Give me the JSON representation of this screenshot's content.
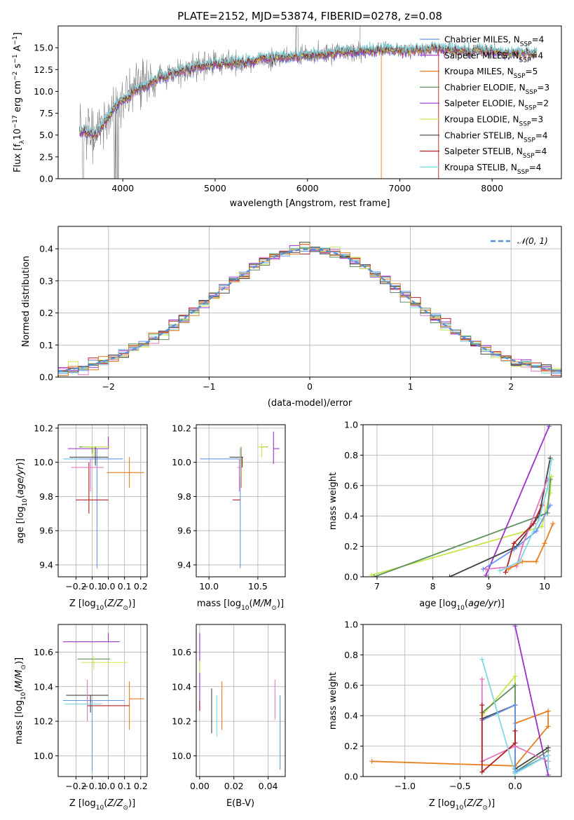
{
  "chart_data": [
    {
      "id": "spectrum",
      "type": "line",
      "title": "PLATE=2152, MJD=53874, FIBERID=0278, z=0.08",
      "xlabel": "wavelength [Angstrom, rest frame]",
      "ylabel": "Flux [f_λ10^-17 erg cm^-2 s^-1 A^-1]",
      "xlim": [
        3300,
        8750
      ],
      "ylim": [
        0,
        17.5
      ],
      "xticks": [
        4000,
        5000,
        6000,
        7000,
        8000
      ],
      "yticks": [
        0.0,
        2.5,
        5.0,
        7.5,
        10.0,
        12.5,
        15.0
      ],
      "data_color": "#808080",
      "model_colors": [
        "#6495ed",
        "#9932cc",
        "#e87d1e",
        "#5f8f5f",
        "#9932cc",
        "#c5e84a",
        "#444444",
        "#b22222",
        "#7fd8e0"
      ],
      "continuum": {
        "x": [
          3500,
          3700,
          3900,
          4100,
          4400,
          4700,
          5000,
          5300,
          5600,
          5900,
          6200,
          6500,
          6800,
          7100,
          7400,
          7700,
          8000,
          8400
        ],
        "y": [
          5.6,
          5.0,
          8.0,
          9.9,
          11.6,
          12.6,
          13.2,
          13.3,
          13.8,
          14.1,
          14.3,
          14.6,
          14.8,
          14.7,
          14.9,
          14.8,
          14.6,
          14.4
        ]
      },
      "legend": [
        {
          "label": "Chabrier MILES, N",
          "sub": "SSP",
          "tail": "=4",
          "color": "#6495ed"
        },
        {
          "label": "Salpeter MILES, N",
          "sub": "SSP",
          "tail": "=4",
          "color": "#9932cc"
        },
        {
          "label": "Kroupa MILES, N",
          "sub": "SSP",
          "tail": "=5",
          "color": "#e87d1e"
        },
        {
          "label": "Chabrier ELODIE, N",
          "sub": "SSP",
          "tail": "=3",
          "color": "#5f8f5f"
        },
        {
          "label": "Salpeter ELODIE, N",
          "sub": "SSP",
          "tail": "=2",
          "color": "#9932cc"
        },
        {
          "label": "Kroupa ELODIE, N",
          "sub": "SSP",
          "tail": "=3",
          "color": "#c5e84a"
        },
        {
          "label": "Chabrier STELIB, N",
          "sub": "SSP",
          "tail": "=4",
          "color": "#444444"
        },
        {
          "label": "Salpeter STELIB, N",
          "sub": "SSP",
          "tail": "=4",
          "color": "#b22222"
        },
        {
          "label": "Kroupa STELIB, N",
          "sub": "SSP",
          "tail": "=4",
          "color": "#7fd8e0"
        }
      ]
    },
    {
      "id": "residuals",
      "type": "histogram",
      "xlabel": "(data-model)/error",
      "ylabel": "Normed distribution",
      "xlim": [
        -2.5,
        2.5
      ],
      "ylim": [
        0,
        0.47
      ],
      "xticks": [
        -2,
        -1,
        0,
        1,
        2
      ],
      "yticks": [
        0.0,
        0.1,
        0.2,
        0.3,
        0.4
      ],
      "legend": "𝒩(0, 1)",
      "colors": [
        "#6495ed",
        "#e377c2",
        "#9932cc",
        "#c5e84a",
        "#b22222",
        "#5f8f5f",
        "#7fd8e0",
        "#444444",
        "#e87d1e"
      ]
    },
    {
      "id": "age_vs_Z",
      "type": "errorbar",
      "xlabel": "Z [log10(Z/Z☉)]",
      "ylabel": "age [log10(age/yr)]",
      "xlim": [
        -0.31,
        0.24
      ],
      "ylim": [
        9.33,
        10.22
      ],
      "xticks": [
        -0.2,
        -0.1,
        0.0,
        0.1,
        0.2
      ],
      "yticks": [
        9.4,
        9.6,
        9.8,
        10.0,
        10.2
      ],
      "points": [
        {
          "x": -0.07,
          "xerr": [
            0.2,
            0.16
          ],
          "y": 10.02,
          "yerr": [
            0.64,
            0.06
          ],
          "color": "#6495ed"
        },
        {
          "x": 0.0,
          "xerr": [
            0.25,
            0.0
          ],
          "y": 10.08,
          "yerr": [
            0.0,
            0.07
          ],
          "color": "#9932cc"
        },
        {
          "x": 0.13,
          "xerr": [
            0.14,
            0.09
          ],
          "y": 9.94,
          "yerr": [
            0.09,
            0.09
          ],
          "color": "#e87d1e"
        },
        {
          "x": -0.1,
          "xerr": [
            0.08,
            0.0
          ],
          "y": 10.09,
          "yerr": [
            0.04,
            0.0
          ],
          "color": "#5f8f5f"
        },
        {
          "x": -0.09,
          "xerr": [
            0.07,
            0.1
          ],
          "y": 10.09,
          "yerr": [
            0.06,
            0.0
          ],
          "color": "#c5e84a"
        },
        {
          "x": -0.08,
          "xerr": [
            0.16,
            0.08
          ],
          "y": 10.03,
          "yerr": [
            0.05,
            0.06
          ],
          "color": "#444444"
        },
        {
          "x": -0.12,
          "xerr": [
            0.08,
            0.12
          ],
          "y": 9.78,
          "yerr": [
            0.08,
            0.22
          ],
          "color": "#b22222"
        },
        {
          "x": -0.11,
          "xerr": [
            0.12,
            0.08
          ],
          "y": 9.97,
          "yerr": [
            0.14,
            0.05
          ],
          "color": "#e377c2"
        },
        {
          "x": -0.18,
          "xerr": [
            0.1,
            0.0
          ],
          "y": 10.02,
          "yerr": [
            0.0,
            0.0
          ],
          "color": "#7fd8e0"
        }
      ]
    },
    {
      "id": "age_vs_mass",
      "type": "errorbar",
      "xlabel": "mass [log10(M/M☉)]",
      "xlim": [
        9.87,
        10.78
      ],
      "ylim": [
        9.33,
        10.22
      ],
      "xticks": [
        10.0,
        10.5
      ],
      "yticks": [
        9.4,
        9.6,
        9.8,
        10.0,
        10.2
      ],
      "points": [
        {
          "x": 10.32,
          "xerr": [
            0.41,
            0.0
          ],
          "y": 10.02,
          "yerr": [
            0.64,
            0.06
          ],
          "color": "#6495ed"
        },
        {
          "x": 10.66,
          "xerr": [
            0.0,
            0.06
          ],
          "y": 10.08,
          "yerr": [
            0.09,
            0.1
          ],
          "color": "#9932cc"
        },
        {
          "x": 10.33,
          "xerr": [
            0.0,
            0.0
          ],
          "y": 9.94,
          "yerr": [
            0.09,
            0.15
          ],
          "color": "#e87d1e"
        },
        {
          "x": 10.56,
          "xerr": [
            0.04,
            0.04
          ],
          "y": 10.09,
          "yerr": [
            0.0,
            0.0
          ],
          "color": "#5f8f5f"
        },
        {
          "x": 10.54,
          "xerr": [
            0.04,
            0.05
          ],
          "y": 10.09,
          "yerr": [
            0.06,
            0.02
          ],
          "color": "#c5e84a"
        },
        {
          "x": 10.34,
          "xerr": [
            0.13,
            0.01
          ],
          "y": 10.03,
          "yerr": [
            0.06,
            0.0
          ],
          "color": "#444444"
        },
        {
          "x": 10.29,
          "xerr": [
            0.05,
            0.03
          ],
          "y": 9.78,
          "yerr": [
            0.0,
            0.0
          ],
          "color": "#b22222"
        },
        {
          "x": 10.31,
          "xerr": [
            0.02,
            0.03
          ],
          "y": 9.97,
          "yerr": [
            0.14,
            0.05
          ],
          "color": "#e377c2"
        },
        {
          "x": 10.32,
          "xerr": [
            0.0,
            0.0
          ],
          "y": 10.02,
          "yerr": [
            0.11,
            0.07
          ],
          "color": "#7fd8e0"
        }
      ]
    },
    {
      "id": "mass_weight_vs_age",
      "type": "line",
      "xlabel": "age [log10(age/yr)]",
      "ylabel": "mass weight",
      "xlim": [
        6.75,
        10.3
      ],
      "ylim": [
        0,
        1
      ],
      "xticks": [
        7,
        8,
        9,
        10
      ],
      "yticks": [
        0.0,
        0.2,
        0.4,
        0.6,
        0.8,
        1.0
      ],
      "series": [
        {
          "color": "#c5e84a",
          "x": [
            6.9,
            9.95,
            10.1,
            10.12
          ],
          "y": [
            0.01,
            0.33,
            0.55,
            0.66
          ]
        },
        {
          "color": "#5f8f5f",
          "x": [
            6.95,
            10.05,
            10.1
          ],
          "y": [
            0.0,
            0.42,
            0.64
          ]
        },
        {
          "color": "#9932cc",
          "x": [
            8.95,
            10.08
          ],
          "y": [
            0.01,
            0.99
          ]
        },
        {
          "color": "#444444",
          "x": [
            8.3,
            9.5,
            9.9,
            10.1
          ],
          "y": [
            0.0,
            0.2,
            0.4,
            0.78
          ]
        },
        {
          "color": "#6495ed",
          "x": [
            8.9,
            9.45,
            9.85,
            10.1
          ],
          "y": [
            0.05,
            0.18,
            0.3,
            0.47
          ]
        },
        {
          "color": "#e377c2",
          "x": [
            8.95,
            9.5,
            9.6,
            10.05
          ],
          "y": [
            0.05,
            0.07,
            0.2,
            0.64
          ]
        },
        {
          "color": "#b22222",
          "x": [
            9.3,
            9.45,
            9.8,
            9.95
          ],
          "y": [
            0.03,
            0.22,
            0.35,
            0.47
          ]
        },
        {
          "color": "#e87d1e",
          "x": [
            9.35,
            9.6,
            9.85,
            10.0,
            10.15
          ],
          "y": [
            0.05,
            0.1,
            0.1,
            0.22,
            0.35
          ]
        },
        {
          "color": "#7fd8e0",
          "x": [
            9.2,
            9.55,
            9.9,
            10.05,
            10.12
          ],
          "y": [
            0.04,
            0.1,
            0.38,
            0.58,
            0.77
          ]
        }
      ]
    },
    {
      "id": "mass_vs_Z",
      "type": "errorbar",
      "xlabel": "Z [log10(Z/Z☉)]",
      "ylabel": "mass [log10(M/M☉)]",
      "xlim": [
        -0.31,
        0.24
      ],
      "ylim": [
        9.88,
        10.76
      ],
      "xticks": [
        -0.2,
        -0.1,
        0.0,
        0.1,
        0.2
      ],
      "yticks": [
        10.0,
        10.2,
        10.4,
        10.6
      ],
      "points": [
        {
          "x": -0.1,
          "xerr": [
            0.18,
            0.2
          ],
          "y": 10.32,
          "yerr": [
            0.41,
            0.0
          ],
          "color": "#6495ed"
        },
        {
          "x": 0.0,
          "xerr": [
            0.28,
            0.07
          ],
          "y": 10.66,
          "yerr": [
            0.0,
            0.05
          ],
          "color": "#9932cc"
        },
        {
          "x": 0.13,
          "xerr": [
            0.0,
            0.09
          ],
          "y": 10.33,
          "yerr": [
            0.18,
            0.1
          ],
          "color": "#e87d1e"
        },
        {
          "x": -0.1,
          "xerr": [
            0.09,
            0.11
          ],
          "y": 10.56,
          "yerr": [
            0.0,
            0.0
          ],
          "color": "#5f8f5f"
        },
        {
          "x": -0.09,
          "xerr": [
            0.08,
            0.21
          ],
          "y": 10.54,
          "yerr": [
            0.04,
            0.04
          ],
          "color": "#c5e84a"
        },
        {
          "x": -0.11,
          "xerr": [
            0.15,
            0.11
          ],
          "y": 10.35,
          "yerr": [
            0.1,
            0.0
          ],
          "color": "#444444"
        },
        {
          "x": -0.13,
          "xerr": [
            0.0,
            0.26
          ],
          "y": 10.29,
          "yerr": [
            0.0,
            0.05
          ],
          "color": "#b22222"
        },
        {
          "x": -0.13,
          "xerr": [
            0.0,
            0.0
          ],
          "y": 10.31,
          "yerr": [
            0.11,
            0.13
          ],
          "color": "#e377c2"
        },
        {
          "x": -0.15,
          "xerr": [
            0.12,
            0.11
          ],
          "y": 10.3,
          "yerr": [
            0.0,
            0.0
          ],
          "color": "#7fd8e0"
        }
      ]
    },
    {
      "id": "mass_vs_ebv",
      "type": "errorbar",
      "xlabel": "E(B-V)",
      "xlim": [
        -0.002,
        0.05
      ],
      "ylim": [
        9.88,
        10.76
      ],
      "xticks": [
        0.0,
        0.02,
        0.04
      ],
      "yticks": [
        10.0,
        10.2,
        10.4,
        10.6
      ],
      "points": [
        {
          "x": 0.047,
          "y": 10.14,
          "yerr": [
            0.22,
            0.21
          ],
          "color": "#6495ed"
        },
        {
          "x": 0.0,
          "y": 10.49,
          "yerr": [
            0.23,
            0.22
          ],
          "color": "#9932cc"
        },
        {
          "x": 0.013,
          "y": 10.29,
          "yerr": [
            0.14,
            0.14
          ],
          "color": "#e87d1e"
        },
        {
          "x": 0.0,
          "y": 10.43,
          "yerr": [
            0.0,
            0.0
          ],
          "color": "#5f8f5f"
        },
        {
          "x": 0.0,
          "y": 10.5,
          "yerr": [
            0.02,
            0.05
          ],
          "color": "#c5e84a"
        },
        {
          "x": 0.007,
          "y": 10.26,
          "yerr": [
            0.13,
            0.13
          ],
          "color": "#444444"
        },
        {
          "x": 0.0,
          "y": 10.32,
          "yerr": [
            0.06,
            0.0
          ],
          "color": "#b22222"
        },
        {
          "x": 0.044,
          "y": 10.3,
          "yerr": [
            0.09,
            0.14
          ],
          "color": "#e377c2"
        },
        {
          "x": 0.01,
          "y": 10.23,
          "yerr": [
            0.12,
            0.12
          ],
          "color": "#7fd8e0"
        }
      ]
    },
    {
      "id": "mass_weight_vs_Z",
      "type": "line",
      "xlabel": "Z [log10(Z/Z☉)]",
      "ylabel": "mass weight",
      "xlim": [
        -1.38,
        0.42
      ],
      "ylim": [
        0,
        1
      ],
      "xticks": [
        -1.0,
        -0.5,
        0.0
      ],
      "yticks": [
        0.0,
        0.2,
        0.4,
        0.6,
        0.8,
        1.0
      ],
      "series": [
        {
          "color": "#e87d1e",
          "x": [
            -1.3,
            0.0,
            0.3,
            0.3,
            0.0,
            0.3
          ],
          "y": [
            0.1,
            0.07,
            0.33,
            0.43,
            0.35,
            0.43
          ]
        },
        {
          "color": "#9932cc",
          "x": [
            0.0,
            0.3
          ],
          "y": [
            0.99,
            0.01
          ]
        },
        {
          "color": "#c5e84a",
          "x": [
            -0.3,
            0.0,
            0.0
          ],
          "y": [
            0.4,
            0.66,
            0.02
          ]
        },
        {
          "color": "#5f8f5f",
          "x": [
            -0.3,
            0.0,
            0.0,
            0.3
          ],
          "y": [
            0.42,
            0.6,
            0.03,
            0.17
          ]
        },
        {
          "color": "#444444",
          "x": [
            -0.3,
            0.0,
            0.0,
            0.3
          ],
          "y": [
            0.38,
            0.47,
            0.05,
            0.19
          ]
        },
        {
          "color": "#6495ed",
          "x": [
            -0.3,
            0.0,
            0.0,
            0.3
          ],
          "y": [
            0.37,
            0.47,
            0.03,
            0.14
          ]
        },
        {
          "color": "#e377c2",
          "x": [
            -0.3,
            -0.3,
            0.0,
            0.3
          ],
          "y": [
            0.64,
            0.1,
            0.2,
            0.1
          ]
        },
        {
          "color": "#b22222",
          "x": [
            -0.3,
            -0.3,
            0.0,
            0.0
          ],
          "y": [
            0.47,
            0.03,
            0.22,
            0.3
          ]
        },
        {
          "color": "#7fd8e0",
          "x": [
            -0.3,
            0.0,
            0.3,
            0.3
          ],
          "y": [
            0.77,
            0.02,
            0.14,
            0.05
          ]
        }
      ]
    }
  ]
}
